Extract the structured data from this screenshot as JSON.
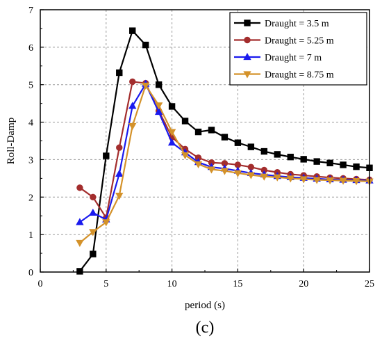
{
  "chart_data": {
    "type": "line",
    "title": "",
    "xlabel": "period (s)",
    "ylabel": "Roll-Damp",
    "xlim": [
      0,
      25
    ],
    "ylim": [
      0,
      7
    ],
    "xticks": [
      0,
      5,
      10,
      15,
      20,
      25
    ],
    "yticks": [
      0,
      1,
      2,
      3,
      4,
      5,
      6,
      7
    ],
    "grid": true,
    "legend_position": "top-right",
    "panel_label": "(c)",
    "series": [
      {
        "name": "Draught = 3.5 m",
        "color": "#000000",
        "marker": "square",
        "x": [
          3,
          4,
          5,
          6,
          7,
          8,
          9,
          10,
          11,
          12,
          13,
          14,
          15,
          16,
          17,
          18,
          19,
          20,
          21,
          22,
          23,
          24,
          25
        ],
        "y": [
          0.02,
          0.48,
          3.1,
          5.32,
          6.44,
          6.06,
          5.0,
          4.42,
          4.03,
          3.74,
          3.79,
          3.6,
          3.45,
          3.34,
          3.22,
          3.14,
          3.07,
          3.01,
          2.95,
          2.91,
          2.86,
          2.81,
          2.78
        ]
      },
      {
        "name": "Draught = 5.25 m",
        "color": "#a32d2d",
        "marker": "circle",
        "x": [
          3,
          4,
          5,
          6,
          7,
          8,
          9,
          10,
          11,
          12,
          13,
          14,
          15,
          16,
          17,
          18,
          19,
          20,
          21,
          22,
          23,
          24,
          25
        ],
        "y": [
          2.25,
          2.0,
          1.45,
          3.32,
          5.08,
          5.04,
          4.3,
          3.6,
          3.28,
          3.05,
          2.92,
          2.9,
          2.86,
          2.8,
          2.72,
          2.66,
          2.61,
          2.58,
          2.55,
          2.52,
          2.5,
          2.48,
          2.46
        ]
      },
      {
        "name": "Draught = 7 m",
        "color": "#1a1aee",
        "marker": "triangle-up",
        "x": [
          3,
          4,
          5,
          6,
          7,
          8,
          9,
          10,
          11,
          12,
          13,
          14,
          15,
          16,
          17,
          18,
          19,
          20,
          21,
          22,
          23,
          24,
          25
        ],
        "y": [
          1.33,
          1.58,
          1.4,
          2.62,
          4.43,
          5.02,
          4.27,
          3.45,
          3.19,
          2.93,
          2.8,
          2.76,
          2.7,
          2.64,
          2.6,
          2.56,
          2.53,
          2.51,
          2.49,
          2.47,
          2.46,
          2.45,
          2.44
        ]
      },
      {
        "name": "Draught = 8.75 m",
        "color": "#d4922a",
        "marker": "triangle-down",
        "x": [
          3,
          4,
          5,
          6,
          7,
          8,
          9,
          10,
          11,
          12,
          13,
          14,
          15,
          16,
          17,
          18,
          19,
          20,
          21,
          22,
          23,
          24,
          25
        ],
        "y": [
          0.78,
          1.07,
          1.33,
          2.04,
          3.9,
          4.98,
          4.45,
          3.74,
          3.12,
          2.88,
          2.74,
          2.7,
          2.64,
          2.59,
          2.55,
          2.53,
          2.5,
          2.48,
          2.46,
          2.45,
          2.44,
          2.43,
          2.42
        ]
      }
    ]
  }
}
